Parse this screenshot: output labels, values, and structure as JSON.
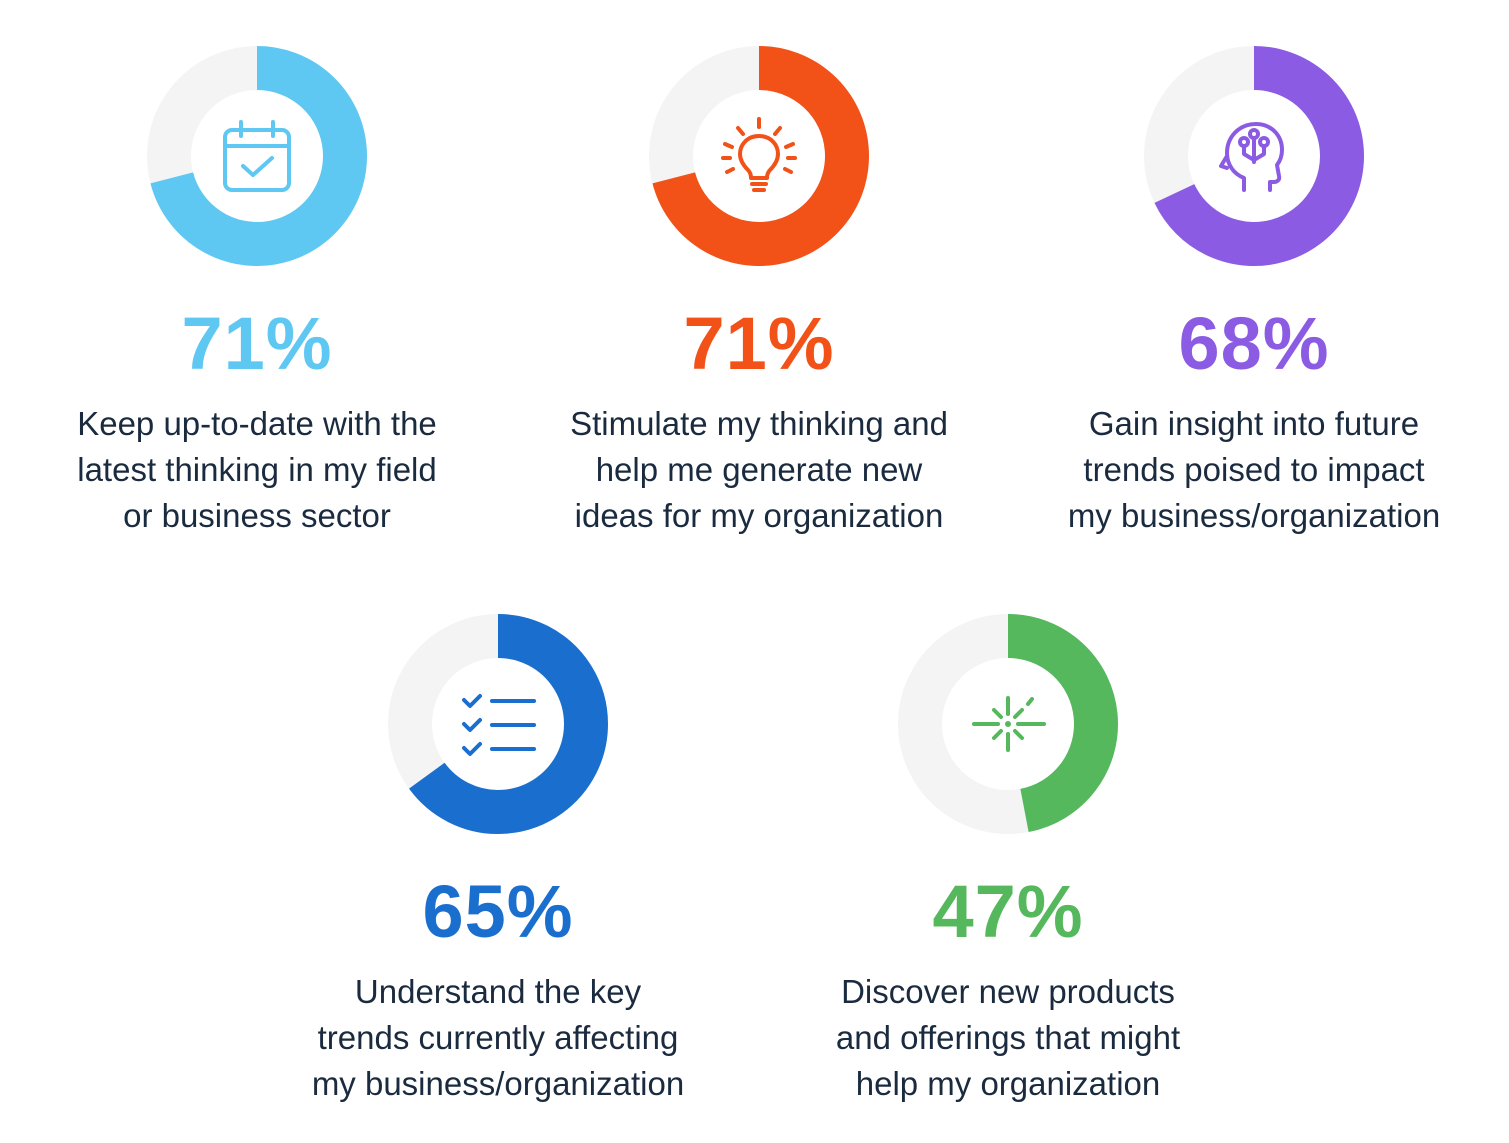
{
  "chart_data": [
    {
      "type": "pie",
      "value": 71,
      "display": "71%",
      "color": "#5ec7f2",
      "icon": "calendar-check-icon",
      "label_lines": [
        "Keep up-to-date with the",
        "latest thinking in my field",
        "or business sector"
      ]
    },
    {
      "type": "pie",
      "value": 71,
      "display": "71%",
      "color": "#f25118",
      "icon": "lightbulb-icon",
      "label_lines": [
        "Stimulate my thinking and",
        "help me generate new",
        "ideas for my organization"
      ]
    },
    {
      "type": "pie",
      "value": 68,
      "display": "68%",
      "color": "#8b5ce3",
      "icon": "brain-head-icon",
      "label_lines": [
        "Gain insight into future",
        "trends poised to impact",
        "my business/organization"
      ]
    },
    {
      "type": "pie",
      "value": 65,
      "display": "65%",
      "color": "#1a6fce",
      "icon": "checklist-icon",
      "label_lines": [
        "Understand the key",
        "trends currently affecting",
        "my business/organization"
      ]
    },
    {
      "type": "pie",
      "value": 47,
      "display": "47%",
      "color": "#55b85c",
      "icon": "sparkle-icon",
      "label_lines": [
        "Discover new products",
        "and offerings that might",
        "help my organization"
      ]
    }
  ],
  "track_color": "#f4f4f4"
}
